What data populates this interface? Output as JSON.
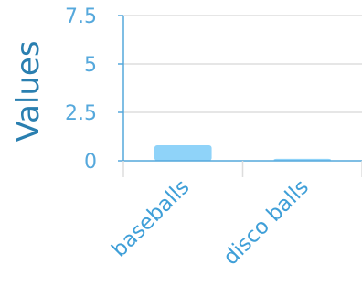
{
  "chart_data": {
    "type": "bar",
    "categories": [
      "baseballs",
      "disco balls"
    ],
    "values": [
      0.8,
      0.1
    ],
    "ylabel": "Values",
    "ylim": [
      0,
      7.5
    ],
    "yticks": [
      0,
      2.5,
      5,
      7.5
    ],
    "ytick_labels": [
      "0",
      "2.5",
      "5",
      "7.5"
    ],
    "grid": true,
    "bar_color": "#8fd3f9",
    "axis_color": "#55a8dc",
    "grid_color": "#dddddd"
  }
}
